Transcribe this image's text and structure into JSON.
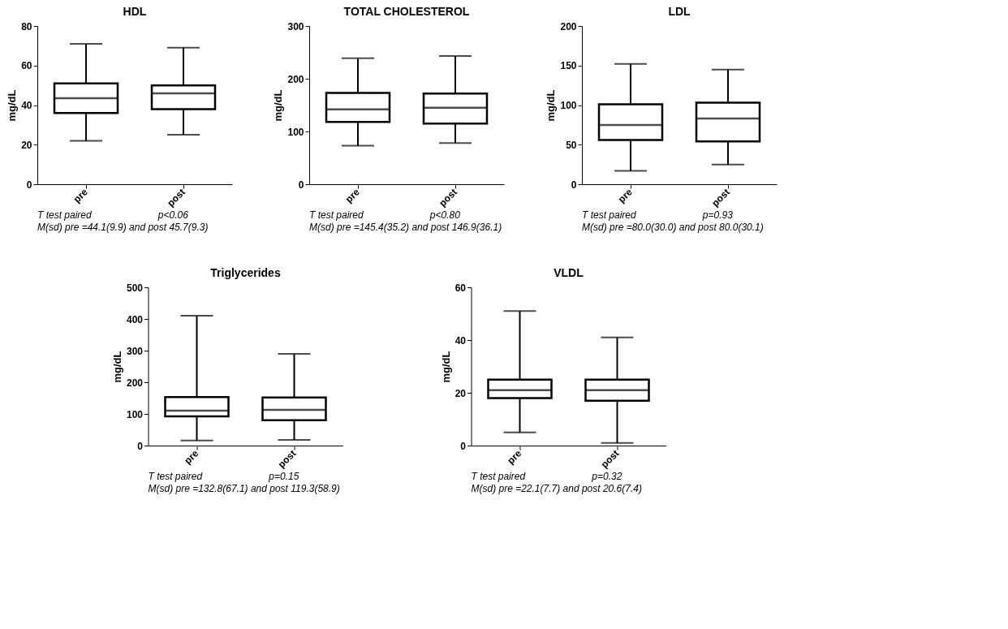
{
  "chart_data": [
    {
      "type": "box",
      "title": "HDL",
      "ylabel": "mg/dL",
      "categories": [
        "pre",
        "post"
      ],
      "boxes": [
        {
          "low": 22,
          "q1": 36,
          "median": 43.5,
          "q3": 51,
          "high": 71
        },
        {
          "low": 25,
          "q1": 38,
          "median": 46,
          "q3": 50,
          "high": 69
        }
      ],
      "ylim": [
        0,
        80
      ],
      "yticks": [
        0,
        20,
        40,
        60,
        80
      ],
      "grid": false,
      "annotations": [
        "T test paired",
        "p<0.06",
        "M(sd)  pre =44.1(9.9) and post 45.7(9.3)"
      ]
    },
    {
      "type": "box",
      "title": "TOTAL CHOLESTEROL",
      "ylabel": "mg/dL",
      "categories": [
        "pre",
        "post"
      ],
      "boxes": [
        {
          "low": 73,
          "q1": 118,
          "median": 142,
          "q3": 173,
          "high": 239
        },
        {
          "low": 78,
          "q1": 115,
          "median": 145,
          "q3": 172,
          "high": 243
        }
      ],
      "ylim": [
        0,
        300
      ],
      "yticks": [
        0,
        100,
        200,
        300
      ],
      "grid": false,
      "annotations": [
        "T test paired",
        "p<0.80",
        "M(sd)  pre =145.4(35.2) and post 146.9(36.1)"
      ]
    },
    {
      "type": "box",
      "title": "LDL",
      "ylabel": "mg/dL",
      "categories": [
        "pre",
        "post"
      ],
      "boxes": [
        {
          "low": 17,
          "q1": 56,
          "median": 75,
          "q3": 101,
          "high": 152
        },
        {
          "low": 25,
          "q1": 54,
          "median": 83,
          "q3": 103,
          "high": 145
        }
      ],
      "ylim": [
        0,
        200
      ],
      "yticks": [
        0,
        50,
        100,
        150,
        200
      ],
      "grid": false,
      "annotations": [
        "T test paired",
        "p=0.93",
        "M(sd)  pre =80.0(30.0) and post 80.0(30.1)"
      ]
    },
    {
      "type": "box",
      "title": "Triglycerides",
      "ylabel": "mg/dL",
      "categories": [
        "pre",
        "post"
      ],
      "boxes": [
        {
          "low": 16,
          "q1": 92,
          "median": 110,
          "q3": 153,
          "high": 410
        },
        {
          "low": 18,
          "q1": 80,
          "median": 113,
          "q3": 152,
          "high": 290
        }
      ],
      "ylim": [
        0,
        500
      ],
      "yticks": [
        0,
        100,
        200,
        300,
        400,
        500
      ],
      "grid": false,
      "annotations": [
        "T test paired",
        "p=0.15",
        "M(sd) pre =132.8(67.1) and post 119.3(58.9)"
      ]
    },
    {
      "type": "box",
      "title": "VLDL",
      "ylabel": "mg/dL",
      "categories": [
        "pre",
        "post"
      ],
      "boxes": [
        {
          "low": 5,
          "q1": 18,
          "median": 21,
          "q3": 25,
          "high": 51
        },
        {
          "low": 1,
          "q1": 17,
          "median": 21,
          "q3": 25,
          "high": 41
        }
      ],
      "ylim": [
        0,
        60
      ],
      "yticks": [
        0,
        20,
        40,
        60
      ],
      "grid": false,
      "annotations": [
        "T test paired",
        "p=0.32",
        "M(sd)  pre =22.1(7.7) and post 20.6(7.4)"
      ]
    }
  ]
}
